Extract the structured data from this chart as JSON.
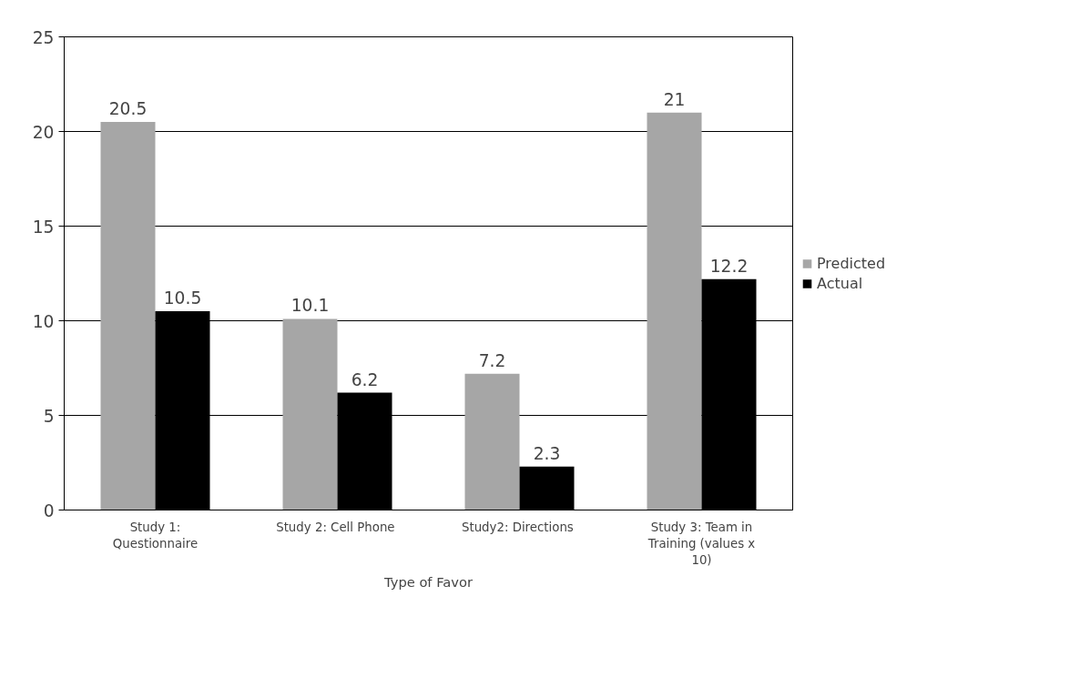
{
  "chart_data": {
    "type": "bar",
    "xlabel": "Type of Favor",
    "categories": [
      "Study 1:\nQuestionnaire",
      "Study 2:  Cell Phone",
      "Study2:  Directions",
      "Study 3: Team in\nTraining (values x\n10)"
    ],
    "series": [
      {
        "name": "Predicted",
        "color": "#a6a6a6",
        "values": [
          20.5,
          10.1,
          7.2,
          21
        ]
      },
      {
        "name": "Actual",
        "color": "#000000",
        "values": [
          10.5,
          6.2,
          2.3,
          12.2
        ]
      }
    ],
    "ylim": [
      0,
      25
    ],
    "yticks": [
      0,
      5,
      10,
      15,
      20,
      25
    ],
    "grid": "y",
    "legend": "right",
    "data_labels": true
  }
}
